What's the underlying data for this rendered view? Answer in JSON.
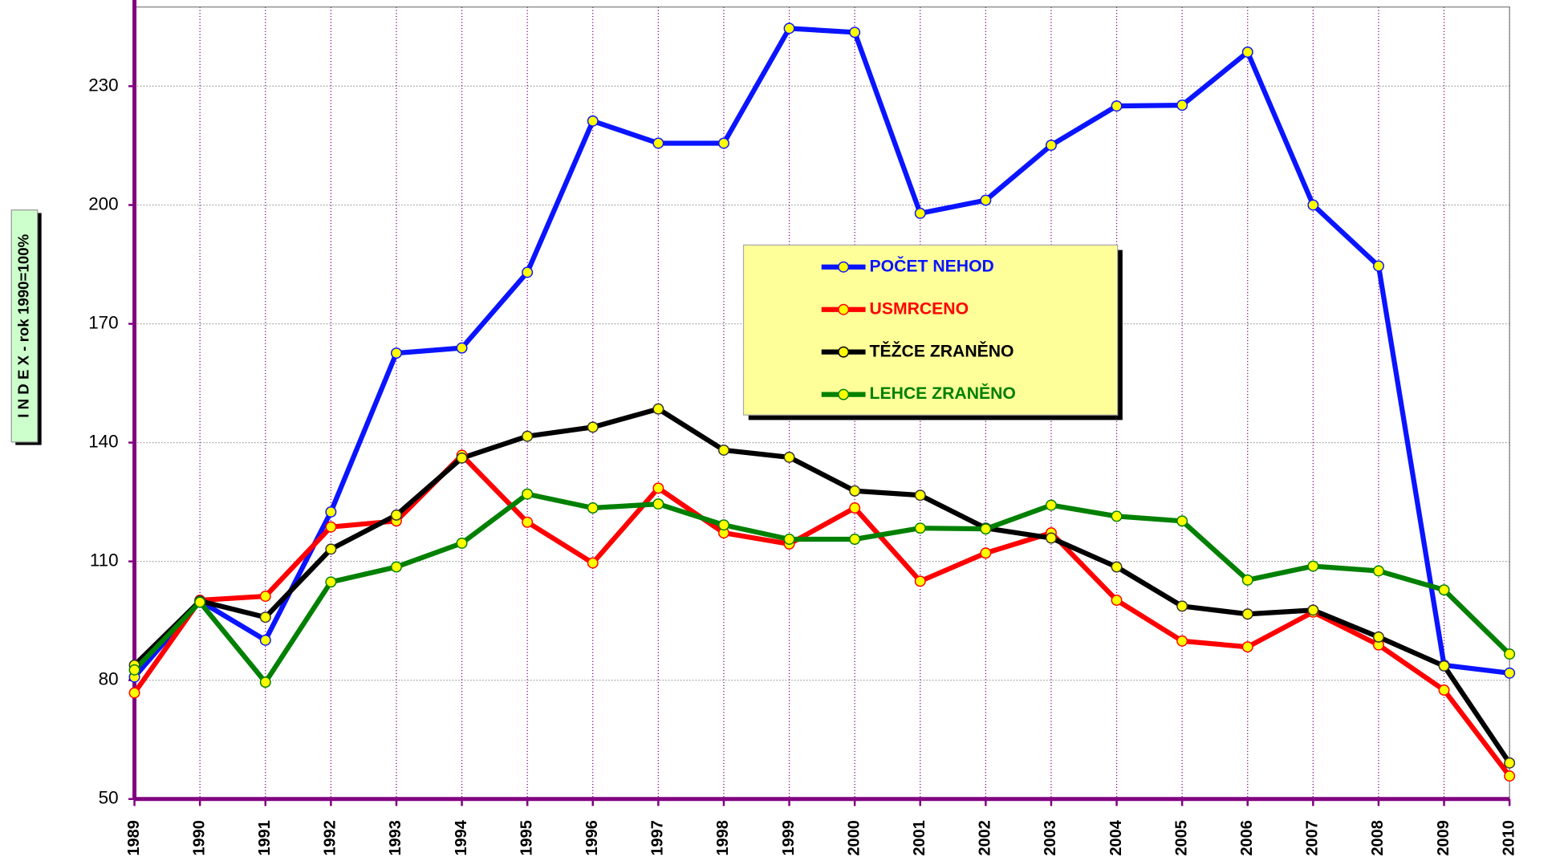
{
  "chart_data": {
    "type": "line",
    "y_label": "I N D E X - rok 1990=100%",
    "categories": [
      "1989",
      "1990",
      "1991",
      "1992",
      "1993",
      "1994",
      "1995",
      "1996",
      "1997",
      "1998",
      "1999",
      "2000",
      "2001",
      "2002",
      "2003",
      "2004",
      "2005",
      "2006",
      "2007",
      "2008",
      "2009",
      "2010"
    ],
    "series": [
      {
        "name": "POČET NEHOD",
        "color": "#0a14ff",
        "values": [
          80.8,
          100,
          90.1,
          122.5,
          162.6,
          163.9,
          183,
          221.2,
          215.6,
          215.6,
          244.6,
          243.6,
          197.9,
          201.2,
          215.1,
          225,
          225.2,
          238.6,
          200,
          184.6,
          83.8,
          81.8
        ]
      },
      {
        "name": "USMRCENO",
        "color": "#ff0000",
        "values": [
          76.8,
          100.2,
          101.2,
          118.7,
          120.2,
          136.8,
          119.9,
          109.6,
          128.5,
          117.2,
          114.4,
          123.5,
          105,
          112.1,
          117.2,
          100.2,
          89.9,
          88.4,
          97.2,
          88.9,
          77.5,
          55.8
        ]
      },
      {
        "name": "TĚŽCE ZRANĚNO",
        "color": "#000000",
        "values": [
          83.8,
          100,
          95.9,
          113.1,
          121.7,
          136.1,
          141.6,
          143.9,
          148.5,
          138.1,
          136.3,
          127.8,
          126.7,
          118.4,
          115.9,
          108.6,
          98.7,
          96.7,
          97.7,
          90.9,
          83.6,
          59.1
        ]
      },
      {
        "name": "LEHCE ZRANĚNO",
        "color": "#008000",
        "values": [
          82.6,
          99.7,
          79.5,
          104.8,
          108.6,
          114.6,
          127,
          123.5,
          124.5,
          119.2,
          115.6,
          115.6,
          118.4,
          118.2,
          124.2,
          121.4,
          120.2,
          105.3,
          108.8,
          107.6,
          102.8,
          86.6
        ]
      }
    ],
    "ylim": [
      50,
      250
    ],
    "yticks": [
      50,
      80,
      110,
      140,
      170,
      200,
      230
    ],
    "grid": true,
    "marker_color": "#ffff00",
    "legend_background": "#ffff99",
    "axis_color": "#800080"
  }
}
